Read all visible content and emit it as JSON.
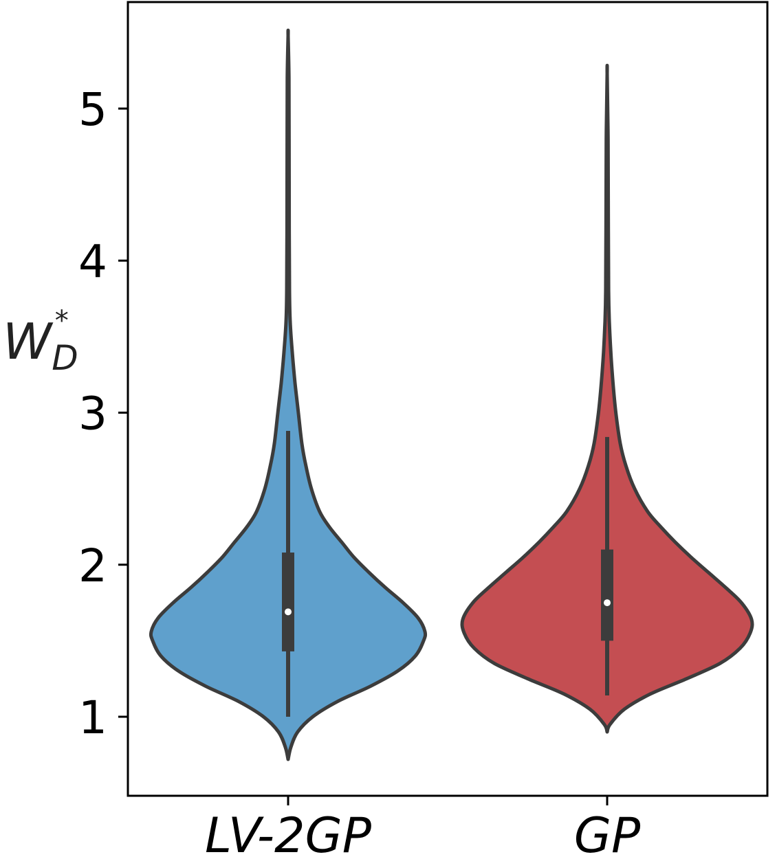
{
  "chart_data": {
    "type": "violin",
    "ylabel_main": "W",
    "ylabel_sub": "D",
    "ylabel_sup": "*",
    "ylim": [
      0.5,
      5.7
    ],
    "yticks": [
      1,
      2,
      3,
      4,
      5
    ],
    "categories": [
      "LV-2GP",
      "GP"
    ],
    "series": [
      {
        "category": "LV-2GP",
        "color": "#5fa0cc",
        "min": 0.72,
        "max": 5.48,
        "median": 1.69,
        "q1": 1.43,
        "q3": 2.08,
        "whisker_low": 1.0,
        "whisker_high": 2.88,
        "density": [
          [
            0.72,
            0.0
          ],
          [
            0.8,
            0.02
          ],
          [
            0.9,
            0.07
          ],
          [
            1.0,
            0.18
          ],
          [
            1.1,
            0.36
          ],
          [
            1.2,
            0.6
          ],
          [
            1.3,
            0.8
          ],
          [
            1.4,
            0.93
          ],
          [
            1.5,
            0.99
          ],
          [
            1.56,
            1.0
          ],
          [
            1.65,
            0.95
          ],
          [
            1.75,
            0.84
          ],
          [
            1.85,
            0.71
          ],
          [
            1.95,
            0.59
          ],
          [
            2.05,
            0.48
          ],
          [
            2.15,
            0.39
          ],
          [
            2.25,
            0.3
          ],
          [
            2.35,
            0.23
          ],
          [
            2.5,
            0.17
          ],
          [
            2.65,
            0.13
          ],
          [
            2.8,
            0.1
          ],
          [
            3.0,
            0.075
          ],
          [
            3.2,
            0.05
          ],
          [
            3.4,
            0.03
          ],
          [
            3.6,
            0.015
          ],
          [
            3.8,
            0.01
          ],
          [
            4.2,
            0.008
          ],
          [
            4.8,
            0.007
          ],
          [
            5.2,
            0.006
          ],
          [
            5.48,
            0.0
          ]
        ]
      },
      {
        "category": "GP",
        "color": "#c44e52",
        "min": 0.9,
        "max": 5.23,
        "median": 1.75,
        "q1": 1.5,
        "q3": 2.1,
        "whisker_low": 1.14,
        "whisker_high": 2.84,
        "density": [
          [
            0.9,
            0.0
          ],
          [
            0.95,
            0.02
          ],
          [
            1.05,
            0.12
          ],
          [
            1.15,
            0.3
          ],
          [
            1.25,
            0.55
          ],
          [
            1.35,
            0.78
          ],
          [
            1.45,
            0.92
          ],
          [
            1.55,
            0.99
          ],
          [
            1.64,
            1.0
          ],
          [
            1.75,
            0.93
          ],
          [
            1.85,
            0.82
          ],
          [
            1.95,
            0.7
          ],
          [
            2.05,
            0.58
          ],
          [
            2.15,
            0.47
          ],
          [
            2.25,
            0.37
          ],
          [
            2.35,
            0.28
          ],
          [
            2.5,
            0.19
          ],
          [
            2.65,
            0.13
          ],
          [
            2.8,
            0.09
          ],
          [
            3.0,
            0.06
          ],
          [
            3.2,
            0.04
          ],
          [
            3.4,
            0.025
          ],
          [
            3.6,
            0.015
          ],
          [
            3.8,
            0.01
          ],
          [
            4.2,
            0.008
          ],
          [
            4.8,
            0.006
          ],
          [
            5.23,
            0.0
          ]
        ]
      }
    ]
  }
}
